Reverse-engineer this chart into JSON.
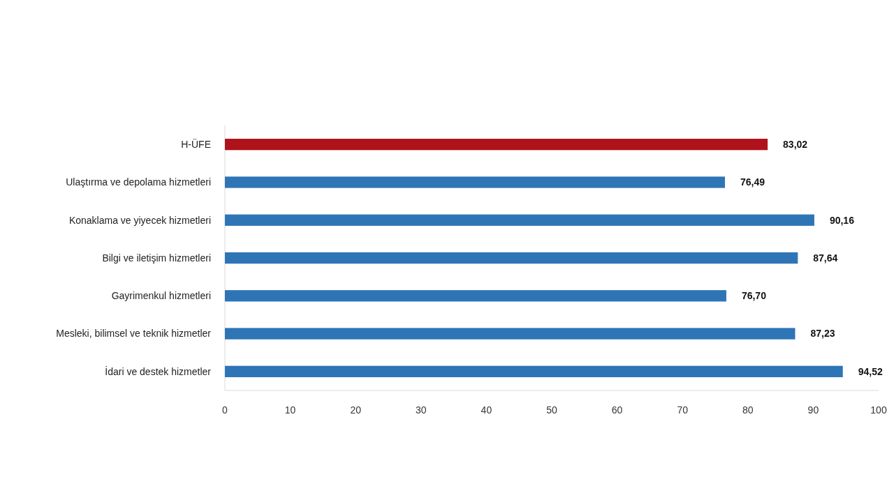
{
  "chart_data": {
    "type": "bar",
    "orientation": "horizontal",
    "categories": [
      "H-ÜFE",
      "Ulaştırma ve depolama hizmetleri",
      "Konaklama ve yiyecek hizmetleri",
      "Bilgi ve iletişim hizmetleri",
      "Gayrimenkul hizmetleri",
      "Mesleki, bilimsel ve teknik hizmetler",
      "İdari ve destek hizmetler"
    ],
    "values": [
      83.02,
      76.49,
      90.16,
      87.64,
      76.7,
      87.23,
      94.52
    ],
    "colors": [
      "#b0121b",
      "#2e75b6",
      "#2e75b6",
      "#2e75b6",
      "#2e75b6",
      "#2e75b6",
      "#2e75b6"
    ],
    "value_labels": [
      "83,02",
      "76,49",
      "90,16",
      "87,64",
      "76,70",
      "87,23",
      "94,52"
    ],
    "xlim": [
      0,
      100
    ],
    "xticks": [
      0,
      10,
      20,
      30,
      40,
      50,
      60,
      70,
      80,
      90,
      100
    ],
    "grid": false
  }
}
